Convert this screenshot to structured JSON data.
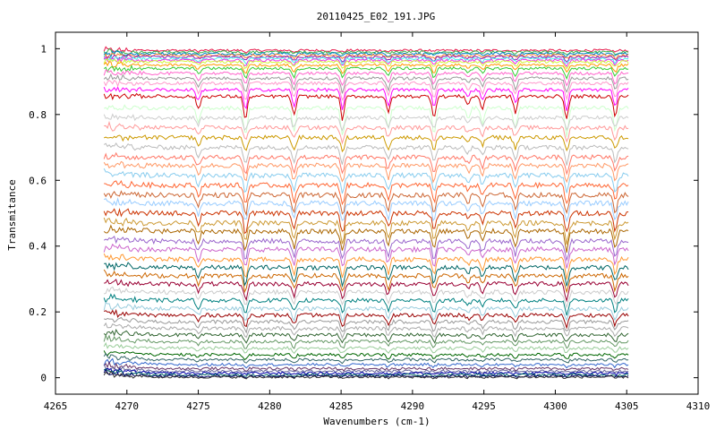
{
  "chart_data": {
    "type": "line",
    "title": "20110425_E02_191.JPG",
    "xlabel": "Wavenumbers (cm-1)",
    "ylabel": "Transmitance",
    "xlim": [
      4265,
      4310
    ],
    "ylim": [
      -0.05,
      1.05
    ],
    "grid": false,
    "legend": "none",
    "x_ticks": [
      4265,
      4270,
      4275,
      4280,
      4285,
      4290,
      4295,
      4300,
      4305,
      4310
    ],
    "y_ticks": [
      0,
      0.2,
      0.4,
      0.6,
      0.8,
      1
    ],
    "y_tick_labels": [
      "0",
      "0.2",
      "0.4",
      "0.6",
      "0.8",
      "1"
    ],
    "x_range_data": [
      4268.4,
      4305.2
    ],
    "absorption_lines": [
      {
        "center": 4275.0,
        "relative_depth": 0.55
      },
      {
        "center": 4278.3,
        "relative_depth": 1.0
      },
      {
        "center": 4281.7,
        "relative_depth": 0.85
      },
      {
        "center": 4285.1,
        "relative_depth": 1.0
      },
      {
        "center": 4288.3,
        "relative_depth": 0.75
      },
      {
        "center": 4291.5,
        "relative_depth": 0.9
      },
      {
        "center": 4293.9,
        "relative_depth": 0.35
      },
      {
        "center": 4294.9,
        "relative_depth": 0.55
      },
      {
        "center": 4297.2,
        "relative_depth": 0.7
      },
      {
        "center": 4300.8,
        "relative_depth": 1.0
      },
      {
        "center": 4304.2,
        "relative_depth": 0.85
      }
    ],
    "series": [
      {
        "baseline": 0.995,
        "color": "#e6194b"
      },
      {
        "baseline": 0.99,
        "color": "#3cb44b"
      },
      {
        "baseline": 0.985,
        "color": "#0082c8"
      },
      {
        "baseline": 0.98,
        "color": "#f58231"
      },
      {
        "baseline": 0.975,
        "color": "#911eb4"
      },
      {
        "baseline": 0.97,
        "color": "#46f0f0"
      },
      {
        "baseline": 0.965,
        "color": "#f032e6"
      },
      {
        "baseline": 0.96,
        "color": "#d2f53c"
      },
      {
        "baseline": 0.95,
        "color": "#ff9900"
      },
      {
        "baseline": 0.94,
        "color": "#33cc33"
      },
      {
        "baseline": 0.925,
        "color": "#ff66cc"
      },
      {
        "baseline": 0.91,
        "color": "#999999"
      },
      {
        "baseline": 0.895,
        "color": "#ff99cc"
      },
      {
        "baseline": 0.875,
        "color": "#ff00ff"
      },
      {
        "baseline": 0.855,
        "color": "#cc0000"
      },
      {
        "baseline": 0.82,
        "color": "#ccffcc"
      },
      {
        "baseline": 0.79,
        "color": "#cccccc"
      },
      {
        "baseline": 0.76,
        "color": "#ff9999"
      },
      {
        "baseline": 0.73,
        "color": "#cc9900"
      },
      {
        "baseline": 0.7,
        "color": "#bbbbbb"
      },
      {
        "baseline": 0.67,
        "color": "#ff7766"
      },
      {
        "baseline": 0.645,
        "color": "#ff9966"
      },
      {
        "baseline": 0.615,
        "color": "#88ccee"
      },
      {
        "baseline": 0.585,
        "color": "#ff6633"
      },
      {
        "baseline": 0.555,
        "color": "#cc6633"
      },
      {
        "baseline": 0.53,
        "color": "#99ccff"
      },
      {
        "baseline": 0.5,
        "color": "#cc3300"
      },
      {
        "baseline": 0.47,
        "color": "#cc9933"
      },
      {
        "baseline": 0.445,
        "color": "#aa6600"
      },
      {
        "baseline": 0.415,
        "color": "#9966cc"
      },
      {
        "baseline": 0.39,
        "color": "#cc66cc"
      },
      {
        "baseline": 0.36,
        "color": "#ff9933"
      },
      {
        "baseline": 0.335,
        "color": "#006666"
      },
      {
        "baseline": 0.31,
        "color": "#cc6600"
      },
      {
        "baseline": 0.285,
        "color": "#990033"
      },
      {
        "baseline": 0.26,
        "color": "#cccccc"
      },
      {
        "baseline": 0.235,
        "color": "#008080"
      },
      {
        "baseline": 0.21,
        "color": "#99ccdd"
      },
      {
        "baseline": 0.19,
        "color": "#990000"
      },
      {
        "baseline": 0.17,
        "color": "#999999"
      },
      {
        "baseline": 0.15,
        "color": "#aaaaaa"
      },
      {
        "baseline": 0.13,
        "color": "#336633"
      },
      {
        "baseline": 0.11,
        "color": "#669966"
      },
      {
        "baseline": 0.09,
        "color": "#99cc99"
      },
      {
        "baseline": 0.07,
        "color": "#006600"
      },
      {
        "baseline": 0.055,
        "color": "#336666"
      },
      {
        "baseline": 0.04,
        "color": "#3366cc"
      },
      {
        "baseline": 0.028,
        "color": "#663366"
      },
      {
        "baseline": 0.02,
        "color": "#666699"
      },
      {
        "baseline": 0.014,
        "color": "#0000aa"
      },
      {
        "baseline": 0.009,
        "color": "#006666"
      },
      {
        "baseline": 0.005,
        "color": "#000066"
      },
      {
        "baseline": 0.002,
        "color": "#333333"
      }
    ],
    "colors": {
      "frame": "#000000",
      "background": "#ffffff"
    }
  }
}
